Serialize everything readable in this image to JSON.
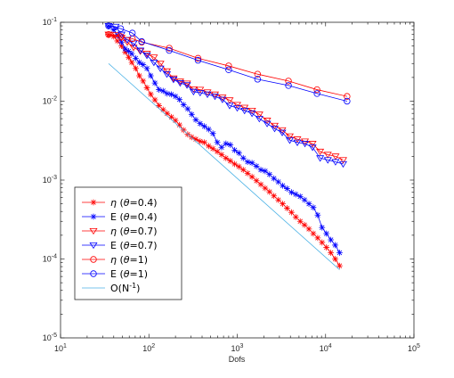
{
  "chart_data": {
    "type": "line",
    "title": "",
    "xlabel": "Dofs",
    "ylabel": "",
    "x_scale": "log",
    "y_scale": "log",
    "xlim": [
      10,
      100000
    ],
    "ylim": [
      1e-05,
      0.1
    ],
    "grid": false,
    "legend_position": "bottom-left",
    "x_tick_labels": [
      {
        "base": "10",
        "exp": "1"
      },
      {
        "base": "10",
        "exp": "2"
      },
      {
        "base": "10",
        "exp": "3"
      },
      {
        "base": "10",
        "exp": "4"
      },
      {
        "base": "10",
        "exp": "5"
      }
    ],
    "y_tick_labels": [
      {
        "base": "10",
        "exp": "-5"
      },
      {
        "base": "10",
        "exp": "-4"
      },
      {
        "base": "10",
        "exp": "-3"
      },
      {
        "base": "10",
        "exp": "-2"
      },
      {
        "base": "10",
        "exp": "-1"
      }
    ],
    "series": [
      {
        "name": "η  (θ=0.4)",
        "legend_parts": [
          "η",
          "  (",
          "θ",
          "=0.4)"
        ],
        "color": "#ff0000",
        "marker": "asterisk",
        "points": [
          [
            35,
            0.07
          ],
          [
            40,
            0.066
          ],
          [
            44,
            0.058
          ],
          [
            49,
            0.05
          ],
          [
            54,
            0.042
          ],
          [
            59,
            0.036
          ],
          [
            64,
            0.031
          ],
          [
            71,
            0.026
          ],
          [
            78,
            0.021
          ],
          [
            86,
            0.018
          ],
          [
            95,
            0.0148
          ],
          [
            105,
            0.0122
          ],
          [
            117,
            0.0104
          ],
          [
            130,
            0.0088
          ],
          [
            145,
            0.0078
          ],
          [
            161,
            0.007
          ],
          [
            180,
            0.0063
          ],
          [
            200,
            0.0057
          ],
          [
            222,
            0.005
          ],
          [
            247,
            0.0043
          ],
          [
            275,
            0.0038
          ],
          [
            305,
            0.0035
          ],
          [
            340,
            0.0033
          ],
          [
            380,
            0.0031
          ],
          [
            425,
            0.003
          ],
          [
            475,
            0.0027
          ],
          [
            530,
            0.0025
          ],
          [
            595,
            0.0023
          ],
          [
            665,
            0.0021
          ],
          [
            745,
            0.0019
          ],
          [
            835,
            0.00175
          ],
          [
            935,
            0.0016
          ],
          [
            1045,
            0.00148
          ],
          [
            1170,
            0.00135
          ],
          [
            1310,
            0.00122
          ],
          [
            1470,
            0.0011
          ],
          [
            1650,
            0.00098
          ],
          [
            1850,
            0.00088
          ],
          [
            2070,
            0.00079
          ],
          [
            2320,
            0.00071
          ],
          [
            2600,
            0.00063
          ],
          [
            2920,
            0.00056
          ],
          [
            3270,
            0.0005
          ],
          [
            3660,
            0.00044
          ],
          [
            4110,
            0.00039
          ],
          [
            4600,
            0.00034
          ],
          [
            5160,
            0.0003
          ],
          [
            5780,
            0.00027
          ],
          [
            6480,
            0.00024
          ],
          [
            7260,
            0.00021
          ],
          [
            8140,
            0.000185
          ],
          [
            9120,
            0.000162
          ],
          [
            10220,
            0.00014
          ],
          [
            11460,
            0.00012
          ],
          [
            12850,
            0.0001
          ],
          [
            14400,
            8.2e-05
          ]
        ]
      },
      {
        "name": "E  (θ=0.4)",
        "legend_parts": [
          "E",
          "  (",
          "θ",
          "=0.4)"
        ],
        "color": "#0000ff",
        "marker": "asterisk",
        "points": [
          [
            35,
            0.09
          ],
          [
            40,
            0.08
          ],
          [
            44,
            0.068
          ],
          [
            49,
            0.056
          ],
          [
            54,
            0.046
          ],
          [
            59,
            0.043
          ],
          [
            64,
            0.04
          ],
          [
            71,
            0.035
          ],
          [
            78,
            0.031
          ],
          [
            86,
            0.029
          ],
          [
            95,
            0.026
          ],
          [
            105,
            0.021
          ],
          [
            117,
            0.017
          ],
          [
            130,
            0.014
          ],
          [
            145,
            0.0135
          ],
          [
            161,
            0.0125
          ],
          [
            180,
            0.0122
          ],
          [
            200,
            0.0115
          ],
          [
            222,
            0.0105
          ],
          [
            247,
            0.009
          ],
          [
            275,
            0.008
          ],
          [
            305,
            0.0068
          ],
          [
            340,
            0.0058
          ],
          [
            380,
            0.0052
          ],
          [
            425,
            0.0048
          ],
          [
            475,
            0.0044
          ],
          [
            530,
            0.0039
          ],
          [
            595,
            0.003
          ],
          [
            665,
            0.0026
          ],
          [
            745,
            0.0029
          ],
          [
            835,
            0.0028
          ],
          [
            935,
            0.0024
          ],
          [
            1045,
            0.0022
          ],
          [
            1170,
            0.0019
          ],
          [
            1310,
            0.0017
          ],
          [
            1470,
            0.00165
          ],
          [
            1650,
            0.0015
          ],
          [
            1850,
            0.00135
          ],
          [
            2070,
            0.0013
          ],
          [
            2320,
            0.00118
          ],
          [
            2600,
            0.00105
          ],
          [
            2920,
            0.00095
          ],
          [
            3270,
            0.00085
          ],
          [
            3660,
            0.00078
          ],
          [
            4110,
            0.0007
          ],
          [
            4600,
            0.00066
          ],
          [
            5160,
            0.00062
          ],
          [
            5780,
            0.00056
          ],
          [
            6480,
            0.0005
          ],
          [
            7260,
            0.00045
          ],
          [
            8140,
            0.00036
          ],
          [
            9120,
            0.00025
          ],
          [
            10220,
            0.00021
          ],
          [
            11460,
            0.000175
          ],
          [
            12850,
            0.00015
          ],
          [
            14400,
            0.00012
          ]
        ]
      },
      {
        "name": "η  (θ=0.7)",
        "legend_parts": [
          "η",
          "  (",
          "θ",
          "=0.7)"
        ],
        "color": "#ff0000",
        "marker": "triangle-down",
        "points": [
          [
            35,
            0.07
          ],
          [
            42,
            0.069
          ],
          [
            49,
            0.064
          ],
          [
            57,
            0.056
          ],
          [
            67,
            0.048
          ],
          [
            80,
            0.043
          ],
          [
            95,
            0.04
          ],
          [
            114,
            0.036
          ],
          [
            135,
            0.03
          ],
          [
            160,
            0.024
          ],
          [
            190,
            0.0195
          ],
          [
            226,
            0.0178
          ],
          [
            270,
            0.0168
          ],
          [
            320,
            0.0142
          ],
          [
            380,
            0.014
          ],
          [
            460,
            0.013
          ],
          [
            560,
            0.0122
          ],
          [
            680,
            0.0112
          ],
          [
            820,
            0.0103
          ],
          [
            1000,
            0.009
          ],
          [
            1210,
            0.0083
          ],
          [
            1470,
            0.0076
          ],
          [
            1780,
            0.0068
          ],
          [
            2180,
            0.0057
          ],
          [
            2650,
            0.0049
          ],
          [
            3230,
            0.0043
          ],
          [
            3930,
            0.0036
          ],
          [
            4790,
            0.0033
          ],
          [
            5840,
            0.0031
          ],
          [
            7120,
            0.0029
          ],
          [
            8680,
            0.0023
          ],
          [
            10600,
            0.0021
          ],
          [
            12950,
            0.002
          ],
          [
            15800,
            0.0018
          ]
        ]
      },
      {
        "name": "E  (θ=0.7)",
        "legend_parts": [
          "E",
          "  (",
          "θ",
          "=0.7)"
        ],
        "color": "#0000ff",
        "marker": "triangle-down",
        "points": [
          [
            35,
            0.09
          ],
          [
            42,
            0.088
          ],
          [
            49,
            0.07
          ],
          [
            57,
            0.06
          ],
          [
            67,
            0.054
          ],
          [
            80,
            0.044
          ],
          [
            95,
            0.038
          ],
          [
            114,
            0.031
          ],
          [
            135,
            0.026
          ],
          [
            160,
            0.022
          ],
          [
            190,
            0.0188
          ],
          [
            226,
            0.017
          ],
          [
            270,
            0.016
          ],
          [
            320,
            0.0132
          ],
          [
            380,
            0.0128
          ],
          [
            460,
            0.0122
          ],
          [
            560,
            0.0115
          ],
          [
            680,
            0.0105
          ],
          [
            820,
            0.0088
          ],
          [
            1000,
            0.0082
          ],
          [
            1210,
            0.0076
          ],
          [
            1470,
            0.007
          ],
          [
            1780,
            0.006
          ],
          [
            2180,
            0.0052
          ],
          [
            2650,
            0.0045
          ],
          [
            3230,
            0.004
          ],
          [
            3930,
            0.0032
          ],
          [
            4790,
            0.003
          ],
          [
            5840,
            0.0029
          ],
          [
            7120,
            0.0026
          ],
          [
            8680,
            0.0019
          ],
          [
            10600,
            0.0018
          ],
          [
            12950,
            0.0017
          ],
          [
            15800,
            0.0016
          ]
        ]
      },
      {
        "name": "η  (θ=1)",
        "legend_parts": [
          "η",
          "  (",
          "θ",
          "=1)"
        ],
        "color": "#ff0000",
        "marker": "circle",
        "points": [
          [
            35,
            0.07
          ],
          [
            48,
            0.066
          ],
          [
            65,
            0.062
          ],
          [
            83,
            0.056
          ],
          [
            170,
            0.047
          ],
          [
            360,
            0.035
          ],
          [
            800,
            0.028
          ],
          [
            1700,
            0.022
          ],
          [
            3800,
            0.018
          ],
          [
            8000,
            0.014
          ],
          [
            17500,
            0.0115
          ]
        ]
      },
      {
        "name": "E  (θ=1)",
        "legend_parts": [
          "E",
          "  (",
          "θ",
          "=1)"
        ],
        "color": "#0000ff",
        "marker": "circle",
        "points": [
          [
            35,
            0.09
          ],
          [
            48,
            0.083
          ],
          [
            65,
            0.073
          ],
          [
            83,
            0.057
          ],
          [
            170,
            0.044
          ],
          [
            360,
            0.033
          ],
          [
            800,
            0.025
          ],
          [
            1700,
            0.019
          ],
          [
            3800,
            0.0158
          ],
          [
            8000,
            0.0125
          ],
          [
            17500,
            0.01
          ]
        ]
      },
      {
        "name": "O(N⁻¹)",
        "legend_parts": [
          "O(N",
          "-1",
          ")"
        ],
        "color": "#4db3e6",
        "marker": "none",
        "points": [
          [
            35,
            0.03
          ],
          [
            14400,
            7.3e-05
          ]
        ]
      }
    ]
  }
}
